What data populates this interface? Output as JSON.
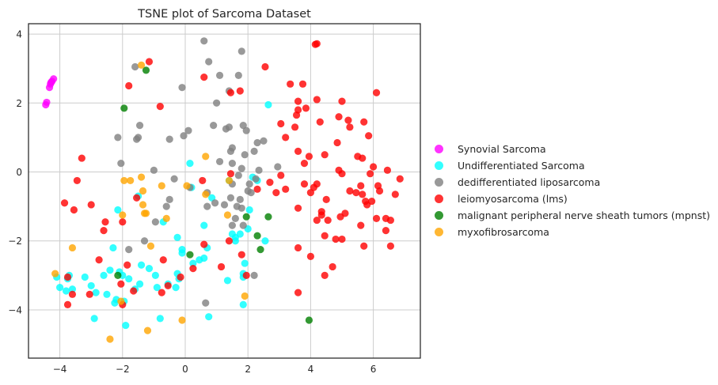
{
  "chart_data": {
    "type": "scatter",
    "title": "TSNE plot of Sarcoma Dataset",
    "xlabel": "",
    "ylabel": "",
    "xlim": [
      -5.0,
      7.5
    ],
    "ylim": [
      -5.4,
      4.3
    ],
    "xticks": [
      -4,
      -2,
      0,
      2,
      4,
      6
    ],
    "yticks": [
      -4,
      -2,
      0,
      2,
      4
    ],
    "xtick_labels": [
      "−4",
      "−2",
      "0",
      "2",
      "4",
      "6"
    ],
    "ytick_labels": [
      "−4",
      "−2",
      "0",
      "2",
      "4"
    ],
    "grid": true,
    "legend_position": "right",
    "series": [
      {
        "name": "Synovial Sarcoma",
        "color": "#ff00ff",
        "points": [
          [
            -4.45,
            1.95
          ],
          [
            -4.42,
            2.02
          ],
          [
            -4.33,
            2.45
          ],
          [
            -4.3,
            2.55
          ],
          [
            -4.28,
            2.6
          ],
          [
            -4.25,
            2.63
          ],
          [
            -4.2,
            2.7
          ]
        ]
      },
      {
        "name": "Undifferentiated Sarcoma",
        "color": "#00ffff",
        "points": [
          [
            -4.1,
            -3.05
          ],
          [
            -4.0,
            -3.35
          ],
          [
            -3.8,
            -3.45
          ],
          [
            -3.75,
            -3.1
          ],
          [
            -3.7,
            -3.0
          ],
          [
            -3.6,
            -3.4
          ],
          [
            -3.2,
            -3.05
          ],
          [
            -3.0,
            -3.3
          ],
          [
            -2.85,
            -3.5
          ],
          [
            -2.9,
            -4.25
          ],
          [
            -2.6,
            -3.0
          ],
          [
            -2.5,
            -3.55
          ],
          [
            -2.4,
            -2.85
          ],
          [
            -2.25,
            -3.8
          ],
          [
            -2.2,
            -3.7
          ],
          [
            -2.1,
            -2.9
          ],
          [
            -2.0,
            -3.0
          ],
          [
            -1.95,
            -3.75
          ],
          [
            -1.9,
            -4.45
          ],
          [
            -1.8,
            -3.1
          ],
          [
            -1.6,
            -3.4
          ],
          [
            -1.45,
            -3.25
          ],
          [
            -1.4,
            -2.7
          ],
          [
            -1.15,
            -2.8
          ],
          [
            -0.95,
            -3.0
          ],
          [
            -0.9,
            -3.35
          ],
          [
            -0.8,
            -4.25
          ],
          [
            -0.55,
            -3.25
          ],
          [
            -0.3,
            -3.35
          ],
          [
            -0.25,
            -2.95
          ],
          [
            -0.25,
            -1.9
          ],
          [
            -0.1,
            -2.25
          ],
          [
            -0.1,
            -2.35
          ],
          [
            -0.2,
            -3.1
          ],
          [
            0.25,
            -2.65
          ],
          [
            0.45,
            -2.55
          ],
          [
            0.6,
            -2.5
          ],
          [
            0.7,
            -2.2
          ],
          [
            0.75,
            -4.2
          ],
          [
            1.35,
            -3.15
          ],
          [
            1.5,
            -1.8
          ],
          [
            1.6,
            -2.0
          ],
          [
            1.6,
            -1.9
          ],
          [
            1.75,
            -1.8
          ],
          [
            1.85,
            -2.95
          ],
          [
            1.85,
            -3.05
          ],
          [
            1.85,
            -3.85
          ],
          [
            1.9,
            -2.65
          ],
          [
            2.0,
            -1.65
          ],
          [
            2.05,
            -1.1
          ],
          [
            2.15,
            -0.15
          ],
          [
            2.3,
            -0.25
          ],
          [
            2.55,
            -2.0
          ],
          [
            2.65,
            1.95
          ],
          [
            1.4,
            -0.25
          ],
          [
            0.2,
            -0.45
          ],
          [
            0.15,
            0.25
          ],
          [
            0.85,
            -0.75
          ],
          [
            0.6,
            -1.55
          ],
          [
            -0.7,
            -1.45
          ],
          [
            -1.5,
            -0.7
          ],
          [
            -2.3,
            -2.2
          ],
          [
            -2.15,
            -1.1
          ]
        ]
      },
      {
        "name": "dedifferentiated liposarcoma",
        "color": "#808080",
        "points": [
          [
            0.6,
            3.8
          ],
          [
            0.75,
            3.2
          ],
          [
            1.8,
            3.5
          ],
          [
            1.1,
            2.8
          ],
          [
            1.7,
            2.8
          ],
          [
            -0.1,
            2.45
          ],
          [
            1.0,
            2.0
          ],
          [
            1.4,
            2.35
          ],
          [
            -2.15,
            1.0
          ],
          [
            -1.5,
            1.0
          ],
          [
            -1.45,
            1.35
          ],
          [
            -0.5,
            0.95
          ],
          [
            0.1,
            1.2
          ],
          [
            -0.05,
            1.05
          ],
          [
            0.9,
            1.35
          ],
          [
            1.3,
            1.25
          ],
          [
            1.4,
            1.3
          ],
          [
            1.85,
            1.35
          ],
          [
            1.95,
            1.2
          ],
          [
            2.3,
            0.85
          ],
          [
            2.5,
            0.9
          ],
          [
            2.2,
            0.6
          ],
          [
            1.5,
            0.7
          ],
          [
            1.45,
            0.6
          ],
          [
            1.9,
            0.5
          ],
          [
            1.5,
            0.25
          ],
          [
            1.8,
            0.1
          ],
          [
            -2.05,
            0.25
          ],
          [
            -1.55,
            0.95
          ],
          [
            -1.0,
            0.05
          ],
          [
            -0.35,
            -0.2
          ],
          [
            0.15,
            -0.45
          ],
          [
            0.7,
            -0.6
          ],
          [
            0.95,
            -0.9
          ],
          [
            0.7,
            -1.0
          ],
          [
            1.1,
            0.3
          ],
          [
            1.7,
            -0.1
          ],
          [
            2.05,
            -0.35
          ],
          [
            2.0,
            -0.55
          ],
          [
            2.1,
            -0.6
          ],
          [
            2.25,
            -0.2
          ],
          [
            2.95,
            0.15
          ],
          [
            1.5,
            -0.35
          ],
          [
            1.45,
            -0.75
          ],
          [
            1.25,
            -0.95
          ],
          [
            1.65,
            -1.0
          ],
          [
            1.8,
            -1.05
          ],
          [
            1.85,
            -1.55
          ],
          [
            1.6,
            -1.35
          ],
          [
            1.5,
            -1.55
          ],
          [
            1.75,
            -0.8
          ],
          [
            -0.6,
            -1.0
          ],
          [
            -0.5,
            -0.8
          ],
          [
            -1.3,
            -2.0
          ],
          [
            -1.8,
            -2.25
          ],
          [
            0.65,
            -3.8
          ],
          [
            2.2,
            -3.0
          ],
          [
            -1.6,
            3.05
          ],
          [
            2.35,
            0.05
          ],
          [
            -0.95,
            -1.45
          ]
        ]
      },
      {
        "name": "leiomyosarcoma (lms)",
        "color": "#ff0000",
        "points": [
          [
            -1.15,
            3.2
          ],
          [
            0.6,
            2.75
          ],
          [
            -1.8,
            2.5
          ],
          [
            -0.8,
            1.9
          ],
          [
            1.45,
            2.3
          ],
          [
            1.75,
            2.35
          ],
          [
            2.55,
            3.05
          ],
          [
            4.15,
            3.7
          ],
          [
            4.2,
            3.72
          ],
          [
            3.35,
            2.55
          ],
          [
            3.75,
            2.55
          ],
          [
            3.6,
            2.05
          ],
          [
            4.2,
            2.1
          ],
          [
            3.85,
            1.85
          ],
          [
            3.6,
            1.8
          ],
          [
            3.55,
            1.65
          ],
          [
            3.05,
            1.4
          ],
          [
            3.5,
            1.3
          ],
          [
            4.3,
            1.45
          ],
          [
            4.9,
            1.6
          ],
          [
            5.0,
            2.05
          ],
          [
            5.2,
            1.5
          ],
          [
            6.1,
            2.3
          ],
          [
            5.7,
            1.45
          ],
          [
            5.25,
            1.3
          ],
          [
            5.85,
            1.05
          ],
          [
            3.2,
            1.0
          ],
          [
            3.6,
            0.6
          ],
          [
            3.95,
            0.45
          ],
          [
            3.8,
            0.25
          ],
          [
            4.45,
            0.5
          ],
          [
            4.85,
            0.85
          ],
          [
            5.5,
            0.45
          ],
          [
            5.65,
            0.4
          ],
          [
            6.0,
            0.15
          ],
          [
            4.9,
            0.05
          ],
          [
            5.0,
            -0.05
          ],
          [
            5.9,
            -0.05
          ],
          [
            6.45,
            0.05
          ],
          [
            6.85,
            -0.2
          ],
          [
            3.05,
            -0.1
          ],
          [
            3.2,
            -0.5
          ],
          [
            2.7,
            -0.3
          ],
          [
            2.3,
            -0.5
          ],
          [
            3.8,
            -0.35
          ],
          [
            4.1,
            -0.45
          ],
          [
            4.2,
            -0.35
          ],
          [
            4.0,
            -0.6
          ],
          [
            4.5,
            -0.8
          ],
          [
            5.25,
            -0.55
          ],
          [
            5.45,
            -0.6
          ],
          [
            5.6,
            -0.4
          ],
          [
            5.65,
            -0.65
          ],
          [
            5.75,
            -0.85
          ],
          [
            5.8,
            -0.95
          ],
          [
            5.95,
            -0.85
          ],
          [
            6.15,
            -0.4
          ],
          [
            6.2,
            -0.55
          ],
          [
            6.7,
            -0.65
          ],
          [
            4.35,
            -1.15
          ],
          [
            4.35,
            -1.25
          ],
          [
            4.55,
            -1.4
          ],
          [
            5.1,
            -1.2
          ],
          [
            4.2,
            -1.4
          ],
          [
            4.95,
            -1.3
          ],
          [
            6.1,
            -1.35
          ],
          [
            6.4,
            -1.35
          ],
          [
            6.55,
            -1.4
          ],
          [
            5.6,
            -1.55
          ],
          [
            6.4,
            -1.7
          ],
          [
            4.45,
            -1.85
          ],
          [
            4.8,
            -1.95
          ],
          [
            5.0,
            -1.95
          ],
          [
            5.7,
            -2.15
          ],
          [
            6.55,
            -2.15
          ],
          [
            3.6,
            -2.2
          ],
          [
            4.0,
            -2.45
          ],
          [
            4.7,
            -2.75
          ],
          [
            4.45,
            -3.0
          ],
          [
            3.6,
            -3.5
          ],
          [
            2.9,
            -0.6
          ],
          [
            3.6,
            -1.05
          ],
          [
            1.45,
            -0.05
          ],
          [
            0.55,
            -0.25
          ],
          [
            1.4,
            -2.0
          ],
          [
            1.15,
            -2.75
          ],
          [
            1.8,
            -2.4
          ],
          [
            1.95,
            -3.0
          ],
          [
            -3.3,
            0.4
          ],
          [
            -3.45,
            -0.25
          ],
          [
            -3.85,
            -0.9
          ],
          [
            -3.55,
            -1.1
          ],
          [
            -3.0,
            -0.95
          ],
          [
            -2.55,
            -1.45
          ],
          [
            -2.6,
            -1.7
          ],
          [
            -2.75,
            -2.55
          ],
          [
            -2.0,
            -1.45
          ],
          [
            -1.85,
            -2.7
          ],
          [
            -2.05,
            -3.25
          ],
          [
            -1.65,
            -3.45
          ],
          [
            -2.0,
            -3.85
          ],
          [
            -3.75,
            -3.05
          ],
          [
            -3.6,
            -3.55
          ],
          [
            -3.75,
            -3.85
          ],
          [
            -3.05,
            -3.55
          ],
          [
            -0.7,
            -2.55
          ],
          [
            -0.55,
            -3.3
          ],
          [
            -0.75,
            -3.5
          ],
          [
            -0.15,
            -3.05
          ],
          [
            0.25,
            -2.8
          ],
          [
            0.6,
            -2.1
          ],
          [
            -1.55,
            -0.75
          ]
        ]
      },
      {
        "name": "malignant peripheral nerve sheath tumors (mpnst)",
        "color": "#008000",
        "points": [
          [
            -1.25,
            2.95
          ],
          [
            -1.95,
            1.85
          ],
          [
            1.95,
            -1.3
          ],
          [
            2.65,
            -1.3
          ],
          [
            2.3,
            -1.85
          ],
          [
            2.4,
            -2.25
          ],
          [
            0.15,
            -2.4
          ],
          [
            -2.15,
            -3.0
          ],
          [
            3.95,
            -4.3
          ]
        ]
      },
      {
        "name": "myxofibrosarcoma",
        "color": "#ffa500",
        "points": [
          [
            -1.4,
            3.1
          ],
          [
            -1.4,
            -0.15
          ],
          [
            -1.35,
            -0.55
          ],
          [
            -1.95,
            -0.25
          ],
          [
            -1.75,
            -0.25
          ],
          [
            -0.75,
            -0.4
          ],
          [
            0.05,
            -0.4
          ],
          [
            0.65,
            -0.65
          ],
          [
            0.65,
            0.45
          ],
          [
            1.4,
            -0.25
          ],
          [
            -1.3,
            -1.2
          ],
          [
            -1.25,
            -1.2
          ],
          [
            -1.35,
            -0.95
          ],
          [
            -1.1,
            -2.15
          ],
          [
            -0.6,
            -1.35
          ],
          [
            -2.0,
            -1.25
          ],
          [
            -3.6,
            -2.2
          ],
          [
            -4.15,
            -2.95
          ],
          [
            -2.05,
            -3.75
          ],
          [
            -1.2,
            -4.6
          ],
          [
            -2.4,
            -4.85
          ],
          [
            -0.1,
            -4.3
          ],
          [
            1.35,
            -1.25
          ],
          [
            1.9,
            -3.6
          ]
        ]
      }
    ]
  }
}
